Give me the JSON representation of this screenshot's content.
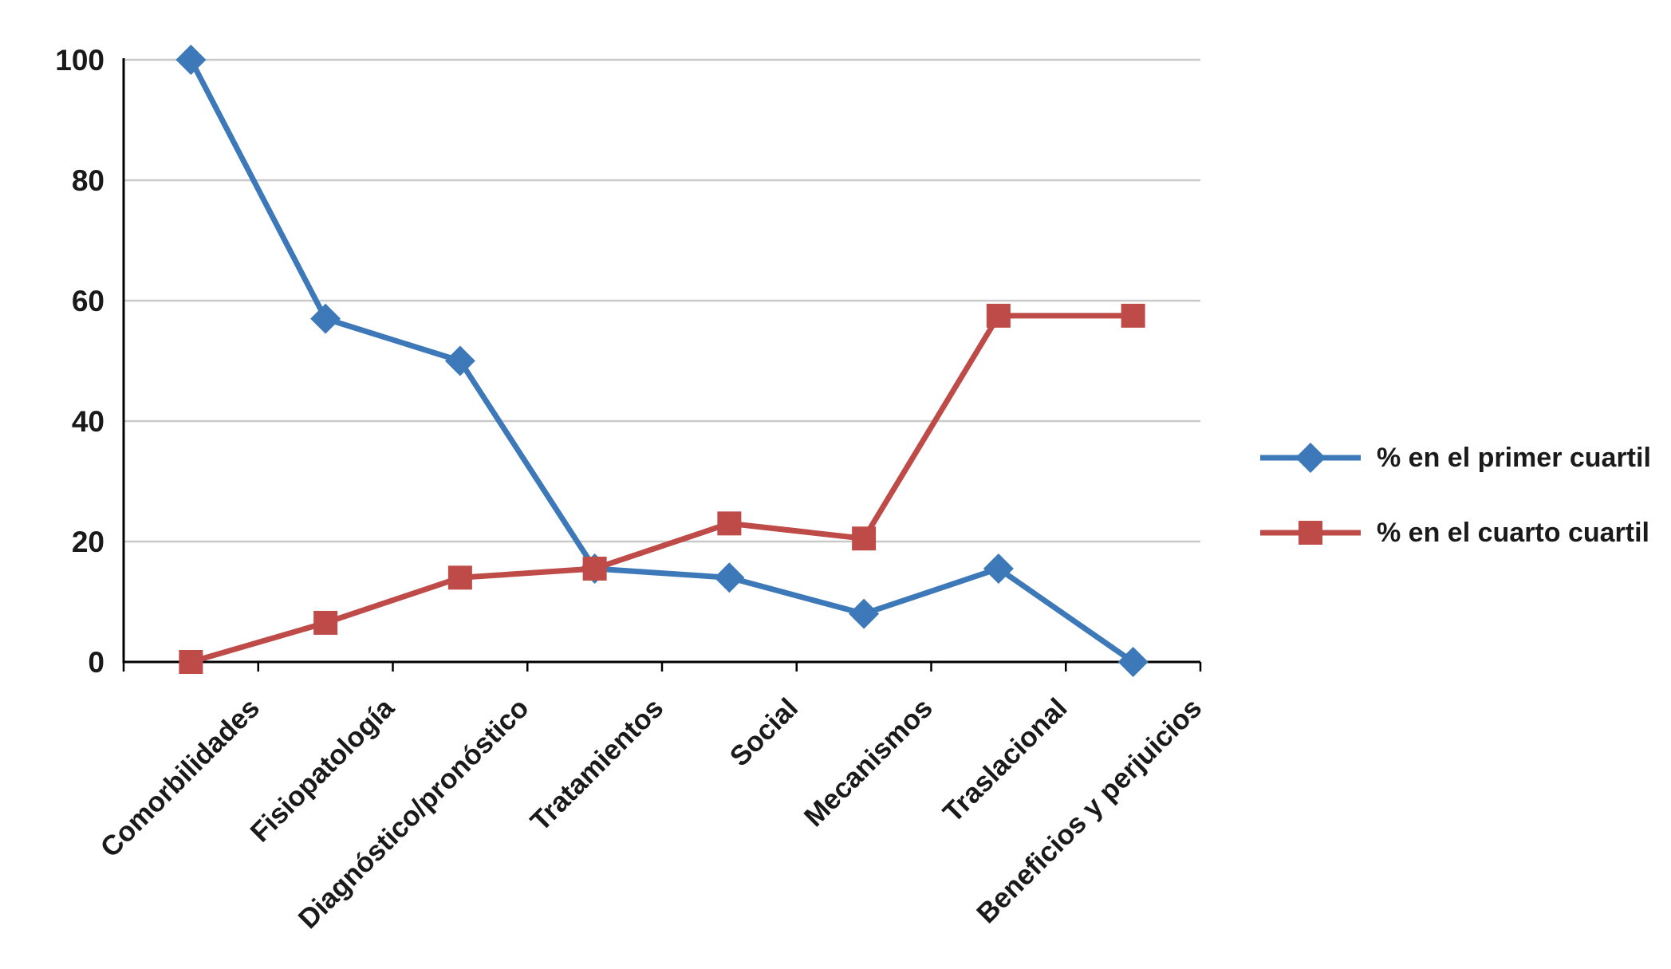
{
  "chart_data": {
    "type": "line",
    "title": "",
    "xlabel": "",
    "ylabel": "",
    "categories": [
      "Comorbilidades",
      "Fisiopatología",
      "Diagnóstico/pronóstico",
      "Tratamientos",
      "Social",
      "Mecanismos",
      "Traslacional",
      "Beneficios y perjuicios"
    ],
    "series": [
      {
        "name": "% en el primer cuartil",
        "marker": "diamond",
        "color": "#3D79B8",
        "values": [
          100,
          57,
          50,
          15.5,
          14,
          8,
          15.5,
          0
        ]
      },
      {
        "name": "% en el cuarto cuartil",
        "marker": "square",
        "color": "#BE4B48",
        "values": [
          0,
          6.5,
          14,
          15.5,
          23,
          20.5,
          57.5,
          57.5
        ]
      }
    ],
    "ylim": [
      0,
      100
    ],
    "yticks": [
      0,
      20,
      40,
      60,
      80,
      100
    ],
    "grid": "horizontal",
    "gridline_color": "#c9c9c9",
    "legend_position": "right"
  }
}
